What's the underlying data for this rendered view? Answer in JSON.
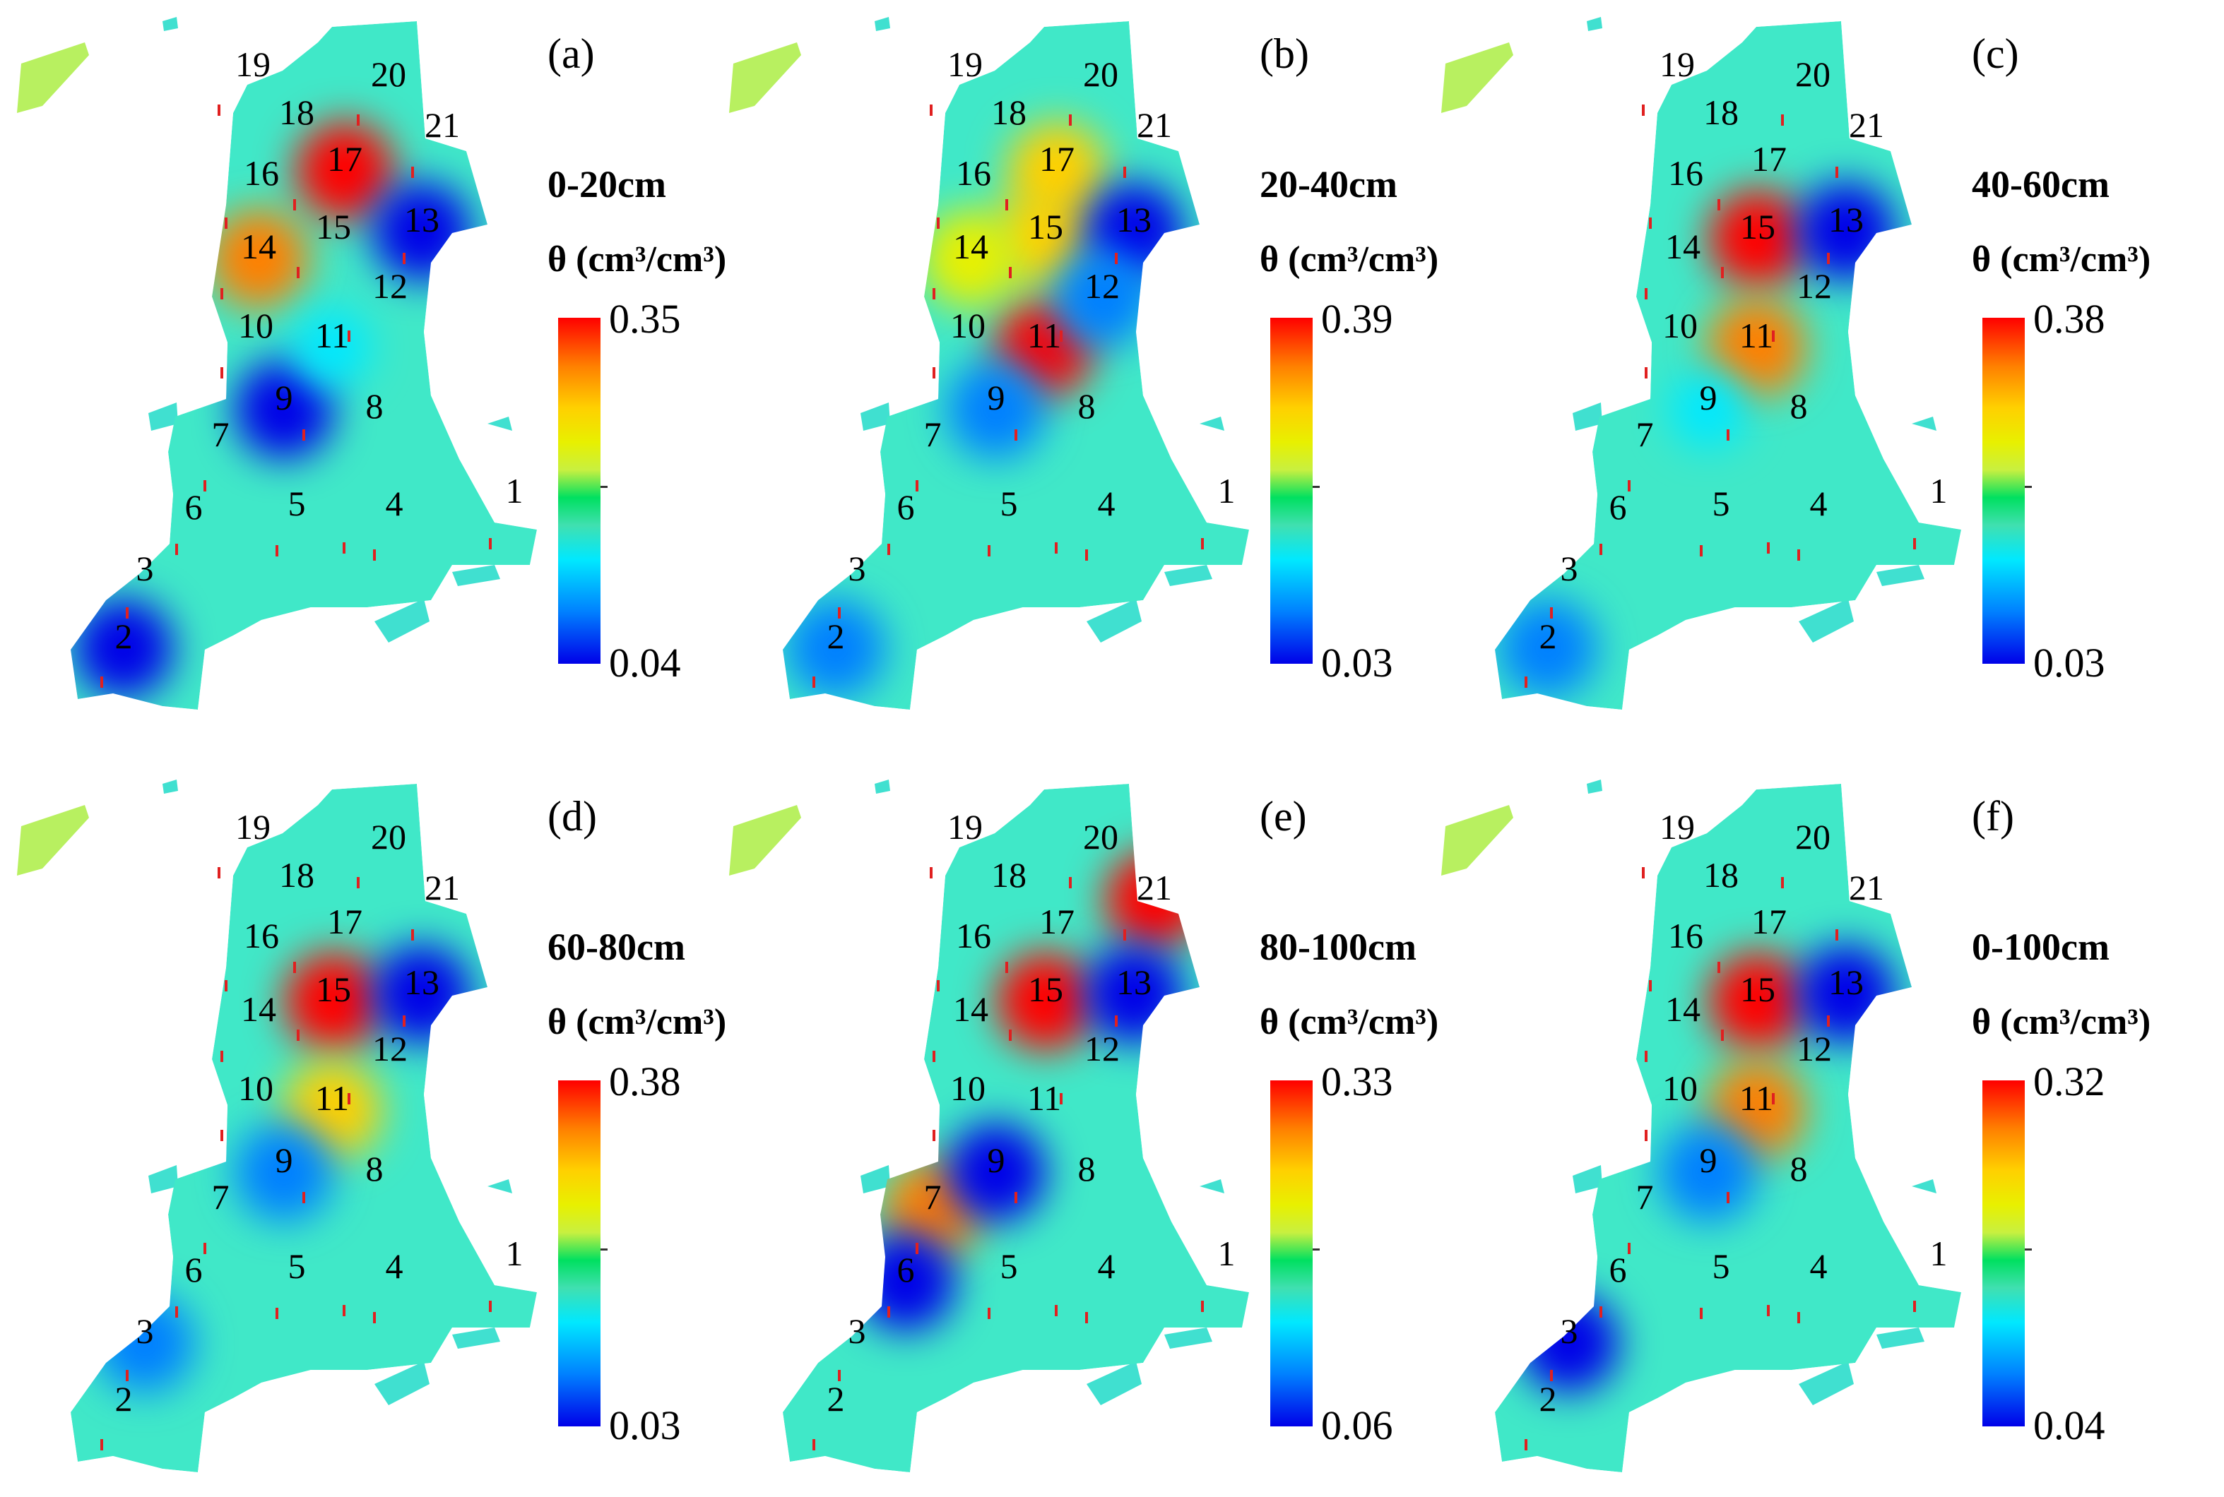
{
  "panels": [
    {
      "label": "(a)",
      "depth": "0-20cm",
      "unit": "θ (cm³/cm³)",
      "max": "0.35",
      "min": "0.04",
      "hotspots": [
        {
          "site": "17",
          "value": 0.35
        },
        {
          "site": "14",
          "value": 0.3
        },
        {
          "site": "9",
          "value": 0.04
        },
        {
          "site": "13",
          "value": 0.05
        },
        {
          "site": "2",
          "value": 0.05
        },
        {
          "site": "11",
          "value": 0.12
        }
      ]
    },
    {
      "label": "(b)",
      "depth": "20-40cm",
      "unit": "θ (cm³/cm³)",
      "max": "0.39",
      "min": "0.03",
      "hotspots": [
        {
          "site": "11",
          "value": 0.39
        },
        {
          "site": "17",
          "value": 0.3
        },
        {
          "site": "15",
          "value": 0.3
        },
        {
          "site": "14",
          "value": 0.27
        },
        {
          "site": "13",
          "value": 0.04
        },
        {
          "site": "9",
          "value": 0.08
        },
        {
          "site": "12",
          "value": 0.08
        },
        {
          "site": "2",
          "value": 0.05
        }
      ]
    },
    {
      "label": "(c)",
      "depth": "40-60cm",
      "unit": "θ (cm³/cm³)",
      "max": "0.38",
      "min": "0.03",
      "hotspots": [
        {
          "site": "15",
          "value": 0.37
        },
        {
          "site": "11",
          "value": 0.36
        },
        {
          "site": "13",
          "value": 0.04
        },
        {
          "site": "9",
          "value": 0.1
        },
        {
          "site": "2",
          "value": 0.05
        }
      ]
    },
    {
      "label": "(d)",
      "depth": "60-80cm",
      "unit": "θ (cm³/cm³)",
      "max": "0.38",
      "min": "0.03",
      "hotspots": [
        {
          "site": "15",
          "value": 0.38
        },
        {
          "site": "11",
          "value": 0.3
        },
        {
          "site": "13",
          "value": 0.04
        },
        {
          "site": "9",
          "value": 0.06
        },
        {
          "site": "3",
          "value": 0.05
        }
      ]
    },
    {
      "label": "(e)",
      "depth": "80-100cm",
      "unit": "θ (cm³/cm³)",
      "max": "0.33",
      "min": "0.06",
      "hotspots": [
        {
          "site": "21",
          "value": 0.32
        },
        {
          "site": "15",
          "value": 0.32
        },
        {
          "site": "7",
          "value": 0.3
        },
        {
          "site": "9",
          "value": 0.07
        },
        {
          "site": "6",
          "value": 0.07
        },
        {
          "site": "13",
          "value": 0.07
        }
      ]
    },
    {
      "label": "(f)",
      "depth": "0-100cm",
      "unit": "θ (cm³/cm³)",
      "max": "0.32",
      "min": "0.04",
      "hotspots": [
        {
          "site": "15",
          "value": 0.32
        },
        {
          "site": "11",
          "value": 0.28
        },
        {
          "site": "9",
          "value": 0.06
        },
        {
          "site": "13",
          "value": 0.05
        },
        {
          "site": "3",
          "value": 0.05
        }
      ]
    }
  ],
  "sites": [
    "1",
    "2",
    "3",
    "4",
    "5",
    "6",
    "7",
    "8",
    "9",
    "10",
    "11",
    "12",
    "13",
    "14",
    "15",
    "16",
    "17",
    "18",
    "19",
    "20",
    "21"
  ],
  "colormap": [
    "#0000e8",
    "#0080ff",
    "#00e8ff",
    "#40e0b0",
    "#00e060",
    "#c8f040",
    "#e8f000",
    "#ffd000",
    "#ff8000",
    "#ff0000"
  ]
}
